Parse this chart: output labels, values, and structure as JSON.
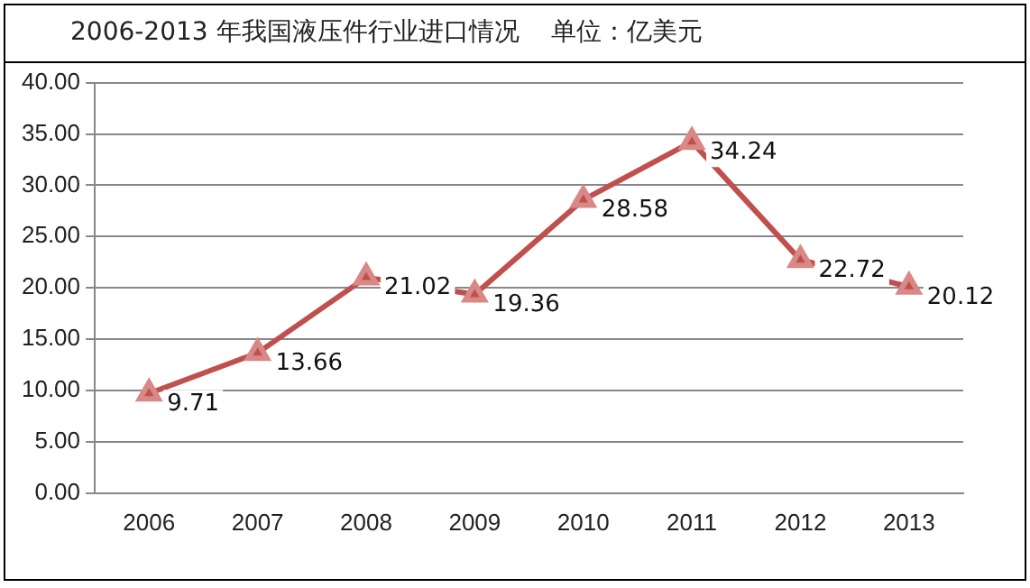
{
  "chart_data": {
    "type": "line",
    "title": "2006-2013 年我国液压件行业进口情况    单位：亿美元",
    "categories": [
      "2006",
      "2007",
      "2008",
      "2009",
      "2010",
      "2011",
      "2012",
      "2013"
    ],
    "series": [
      {
        "color": "#c0504d",
        "values": [
          9.71,
          13.66,
          21.02,
          19.36,
          28.58,
          34.24,
          22.72,
          20.12
        ]
      }
    ],
    "ylim": [
      0,
      40
    ],
    "yticks": [
      {
        "value": 0,
        "label": "0.00"
      },
      {
        "value": 5,
        "label": "5.00"
      },
      {
        "value": 10,
        "label": "10.00"
      },
      {
        "value": 15,
        "label": "15.00"
      },
      {
        "value": 20,
        "label": "20.00"
      },
      {
        "value": 25,
        "label": "25.00"
      },
      {
        "value": 30,
        "label": "30.00"
      },
      {
        "value": 35,
        "label": "35.00"
      },
      {
        "value": 40,
        "label": "40.00"
      }
    ],
    "grid": "y",
    "legend": false,
    "marker": "triangle",
    "line_style": "solid",
    "data_labels": true
  }
}
